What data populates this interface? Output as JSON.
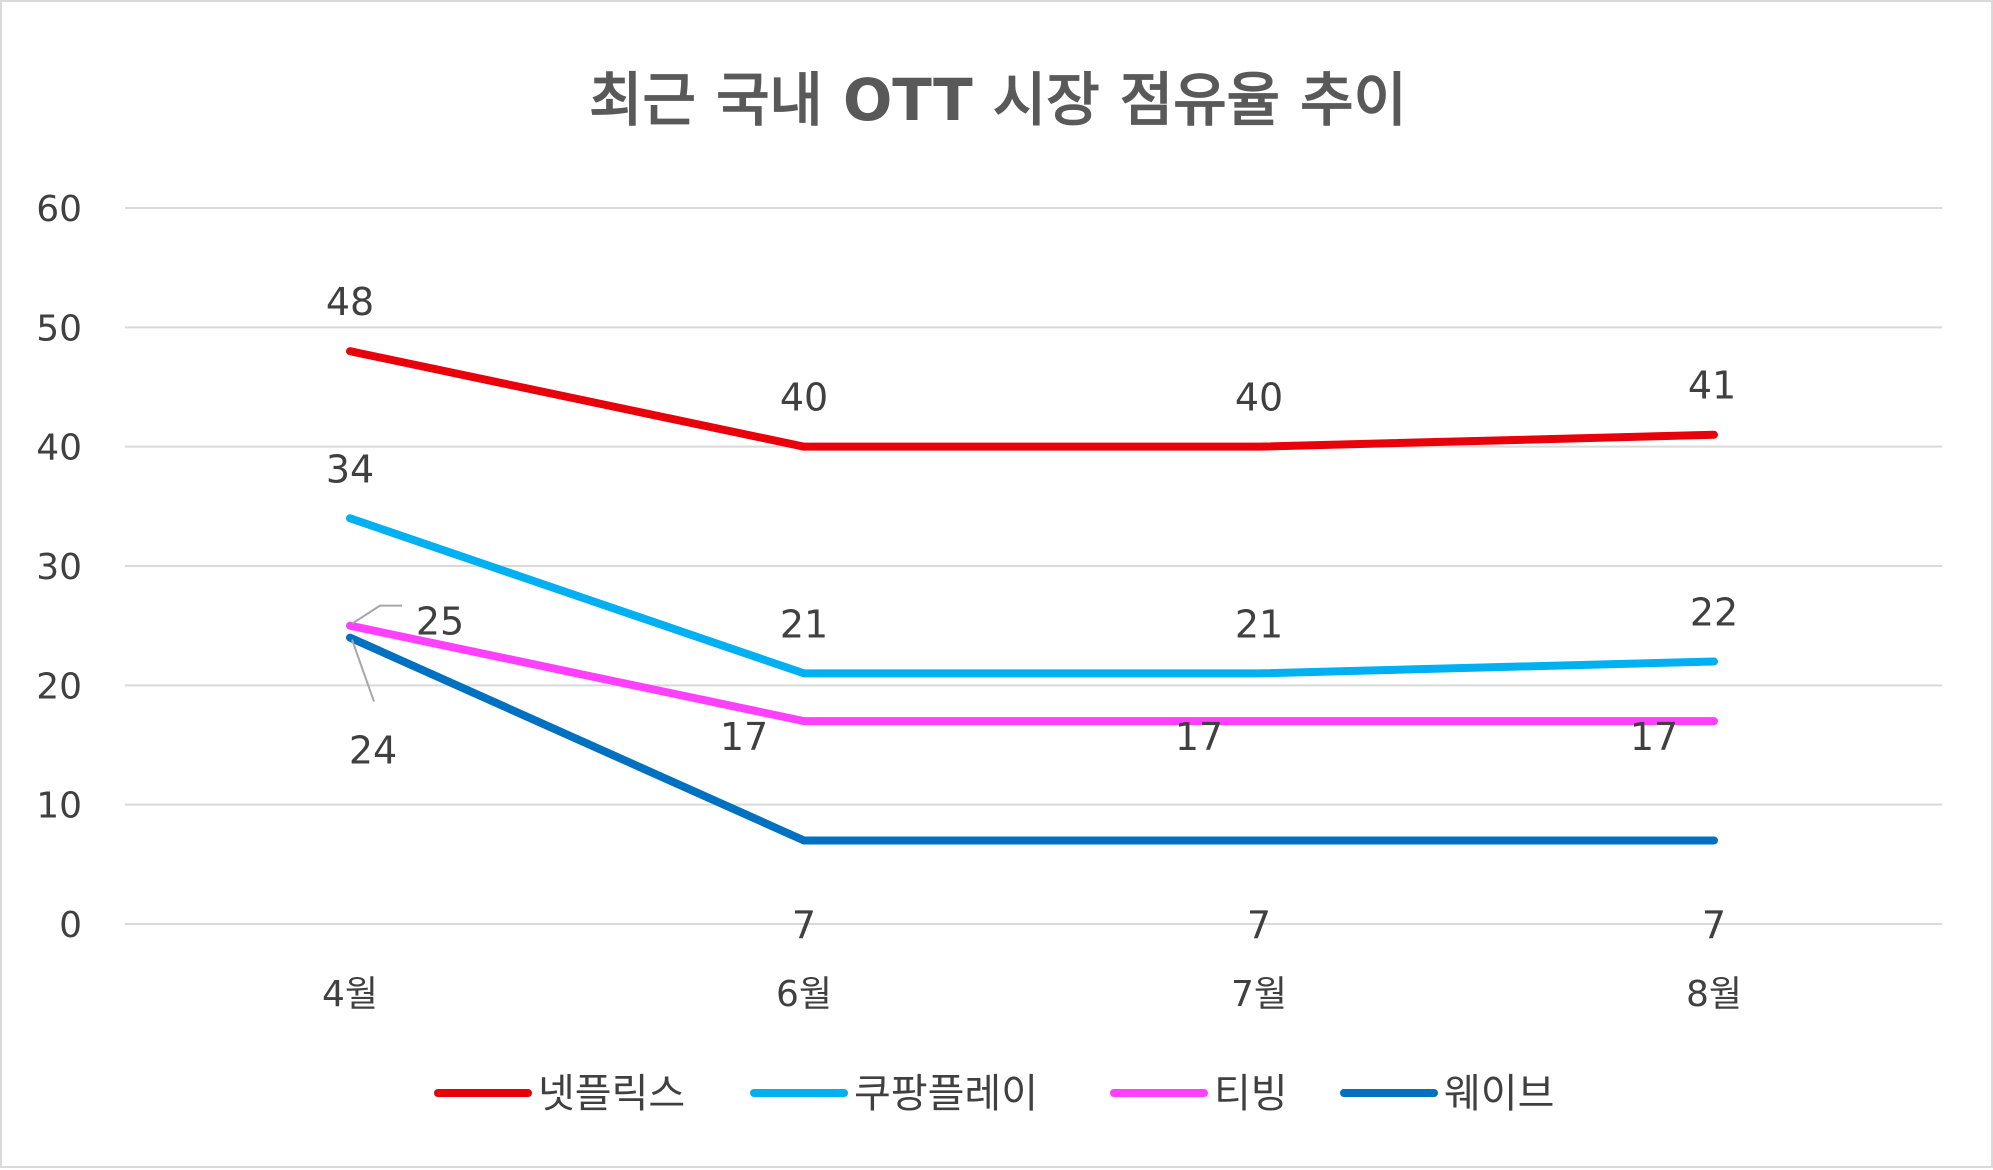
{
  "chart_data": {
    "type": "line",
    "title": "최근 국내 OTT 시장 점유율 추이",
    "categories": [
      "4월",
      "6월",
      "7월",
      "8월"
    ],
    "ylim": [
      0,
      60
    ],
    "yticks": [
      0,
      10,
      20,
      30,
      40,
      50,
      60
    ],
    "xlabel": "",
    "ylabel": "",
    "grid": "horizontal",
    "legend": "bottom",
    "series": [
      {
        "name": "넷플릭스",
        "values": [
          48,
          40,
          40,
          41
        ],
        "color": "#e8000b"
      },
      {
        "name": "쿠팡플레이",
        "values": [
          34,
          21,
          21,
          22
        ],
        "color": "#00b0f0"
      },
      {
        "name": "티빙",
        "values": [
          25,
          17,
          17,
          17
        ],
        "color": "#ff40ff"
      },
      {
        "name": "웨이브",
        "values": [
          24,
          7,
          7,
          7
        ],
        "color": "#0070c0"
      }
    ]
  }
}
